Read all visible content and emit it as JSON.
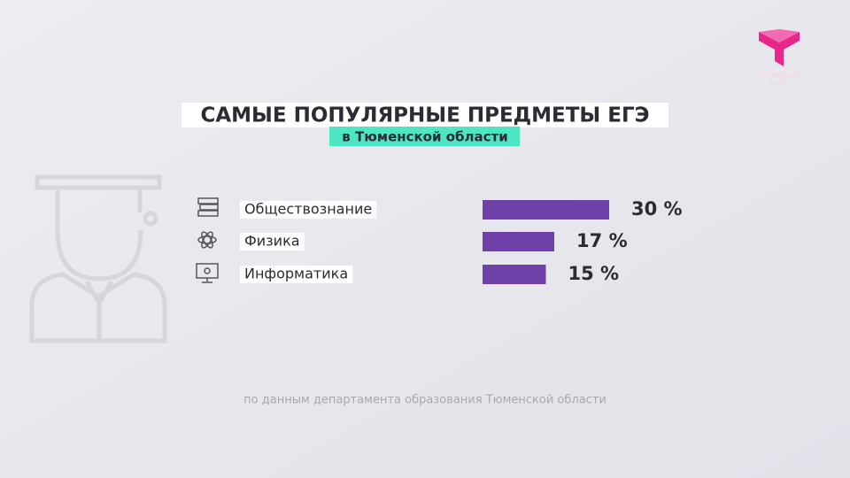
{
  "chart_data": {
    "type": "hbar",
    "title": "САМЫЕ ПОПУЛЯРНЫЕ ПРЕДМЕТЫ ЕГЭ",
    "subtitle": "в Тюменской области",
    "categories": [
      "Обществознание",
      "Физика",
      "Информатика"
    ],
    "values": [
      30,
      17,
      15
    ],
    "value_labels": [
      "30 %",
      "17 %",
      "15 %"
    ],
    "color": "#6e40a8",
    "source": "по данным департамента образования Тюменской области"
  },
  "logo": {
    "lines": [
      "ТЮМЕНСКОЕ",
      "ВРЕМЯ"
    ]
  }
}
